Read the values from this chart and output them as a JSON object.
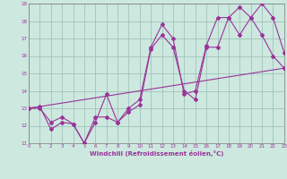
{
  "xlabel": "Windchill (Refroidissement éolien,°C)",
  "bg_color": "#cde8df",
  "grid_color": "#a0c4bc",
  "line_color": "#993399",
  "spine_color": "#7a7a7a",
  "xmin": 0,
  "xmax": 23,
  "ymin": 11,
  "ymax": 19,
  "line1_x": [
    0,
    1,
    2,
    3,
    4,
    5,
    6,
    7,
    8,
    9,
    10,
    11,
    12,
    13,
    14,
    15,
    16,
    17,
    18,
    19,
    20,
    21,
    22,
    23
  ],
  "line1_y": [
    13.0,
    13.1,
    11.8,
    12.2,
    12.1,
    11.0,
    12.5,
    12.5,
    12.2,
    13.0,
    13.5,
    16.5,
    17.8,
    17.0,
    13.8,
    14.0,
    16.6,
    18.2,
    18.2,
    18.8,
    18.2,
    19.0,
    18.2,
    16.2
  ],
  "line2_x": [
    0,
    1,
    2,
    3,
    4,
    5,
    6,
    7,
    8,
    9,
    10,
    11,
    12,
    13,
    14,
    15,
    16,
    17,
    18,
    19,
    20,
    21,
    22,
    23
  ],
  "line2_y": [
    13.0,
    13.0,
    12.2,
    12.5,
    12.1,
    11.0,
    12.2,
    13.8,
    12.2,
    12.8,
    13.2,
    16.4,
    17.2,
    16.5,
    14.0,
    13.5,
    16.5,
    16.5,
    18.2,
    17.2,
    18.2,
    17.2,
    16.0,
    15.3
  ],
  "line3_x": [
    0,
    23
  ],
  "line3_y": [
    13.0,
    15.3
  ]
}
